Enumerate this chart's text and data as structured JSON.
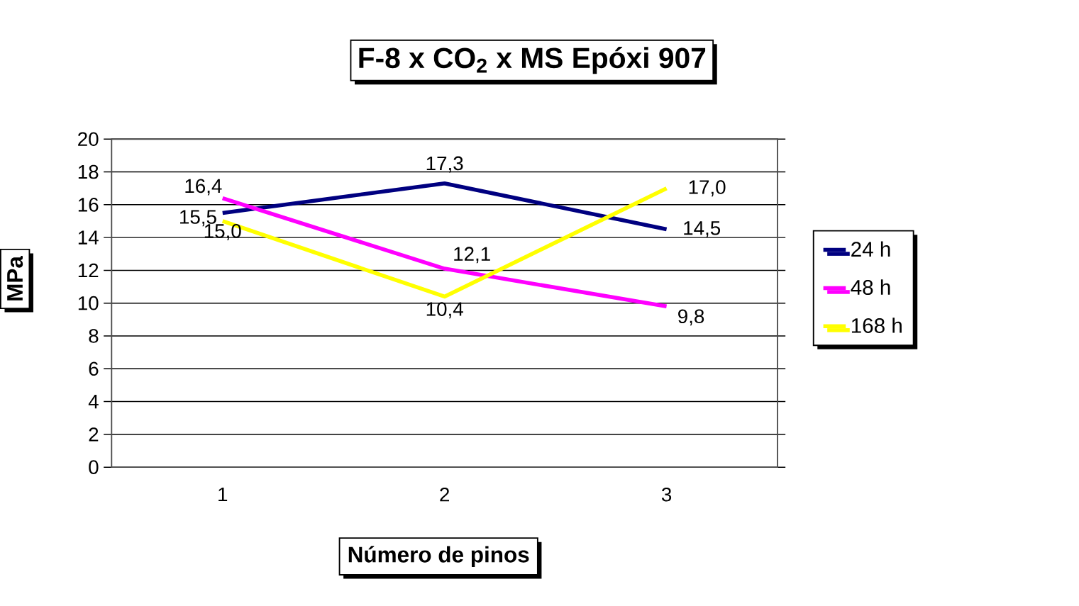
{
  "chart_data": {
    "type": "line",
    "title": "F-8 x CO$_{2}$ x MS Epóxi 907",
    "xlabel": "Número de pinos",
    "ylabel": "MPa",
    "categories": [
      "1",
      "2",
      "3"
    ],
    "series": [
      {
        "name": "24 h",
        "color": "#000080",
        "values": [
          15.5,
          17.3,
          14.5
        ],
        "value_labels": [
          "15,5",
          "17,3",
          "14,5"
        ]
      },
      {
        "name": "48 h",
        "color": "#ff00ff",
        "values": [
          16.4,
          12.1,
          9.8
        ],
        "value_labels": [
          "16,4",
          "12,1",
          "9,8"
        ]
      },
      {
        "name": "168 h",
        "color": "#ffff00",
        "values": [
          15.0,
          10.4,
          17.0
        ],
        "value_labels": [
          "15,0",
          "10,4",
          "17,0"
        ]
      }
    ],
    "ylim": [
      0,
      20
    ],
    "yticks": [
      0,
      2,
      4,
      6,
      8,
      10,
      12,
      14,
      16,
      18,
      20
    ],
    "grid": "y",
    "legend": "right",
    "marker": "none",
    "line_style": "solid"
  }
}
